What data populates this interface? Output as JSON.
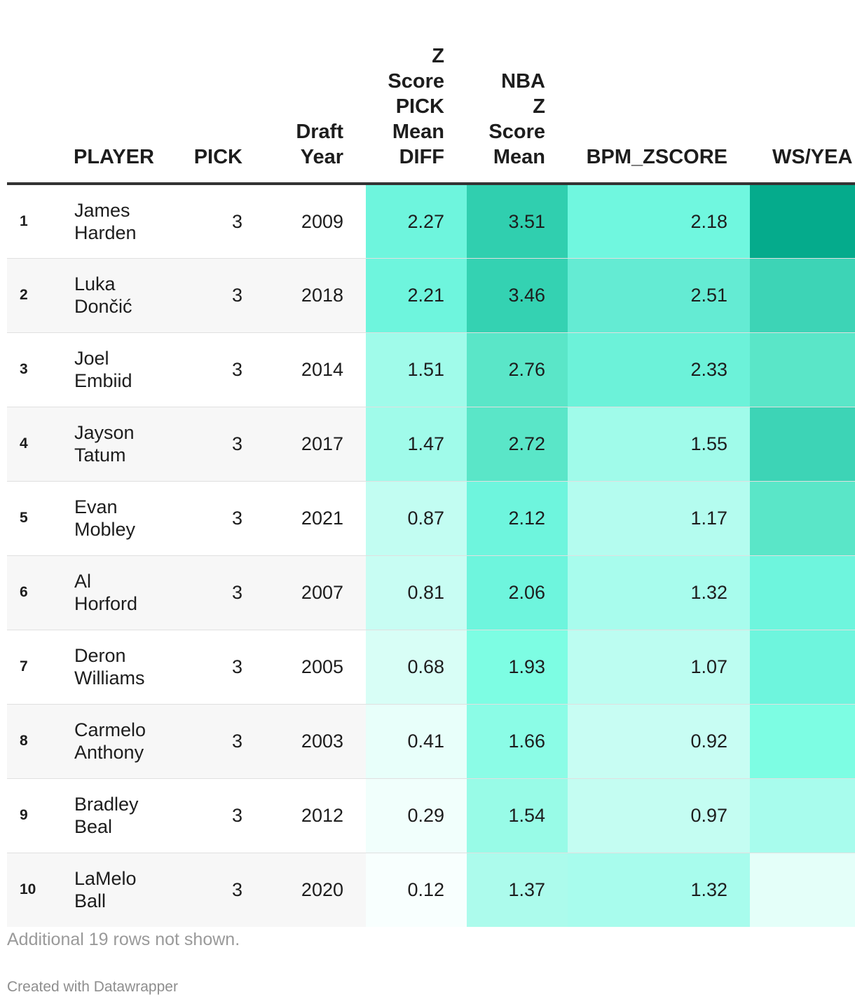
{
  "chart_data": {
    "type": "table",
    "columns": [
      "",
      "PLAYER",
      "PICK",
      "Draft\nYear",
      "Z\nScore\nPICK\nMean\nDIFF",
      "NBA\nZ\nScore\nMean",
      "BPM_ZSCORE",
      "WS/YEA"
    ],
    "rows": [
      {
        "rank": "1",
        "player": "James\nHarden",
        "pick": "3",
        "year": "2009",
        "zdiff": "2.27",
        "nba": "3.51",
        "bpm": "2.18",
        "ws": ""
      },
      {
        "rank": "2",
        "player": "Luka\nDončić",
        "pick": "3",
        "year": "2018",
        "zdiff": "2.21",
        "nba": "3.46",
        "bpm": "2.51",
        "ws": ""
      },
      {
        "rank": "3",
        "player": "Joel\nEmbiid",
        "pick": "3",
        "year": "2014",
        "zdiff": "1.51",
        "nba": "2.76",
        "bpm": "2.33",
        "ws": ""
      },
      {
        "rank": "4",
        "player": "Jayson\nTatum",
        "pick": "3",
        "year": "2017",
        "zdiff": "1.47",
        "nba": "2.72",
        "bpm": "1.55",
        "ws": ""
      },
      {
        "rank": "5",
        "player": "Evan\nMobley",
        "pick": "3",
        "year": "2021",
        "zdiff": "0.87",
        "nba": "2.12",
        "bpm": "1.17",
        "ws": ""
      },
      {
        "rank": "6",
        "player": "Al\nHorford",
        "pick": "3",
        "year": "2007",
        "zdiff": "0.81",
        "nba": "2.06",
        "bpm": "1.32",
        "ws": ""
      },
      {
        "rank": "7",
        "player": "Deron\nWilliams",
        "pick": "3",
        "year": "2005",
        "zdiff": "0.68",
        "nba": "1.93",
        "bpm": "1.07",
        "ws": ""
      },
      {
        "rank": "8",
        "player": "Carmelo\nAnthony",
        "pick": "3",
        "year": "2003",
        "zdiff": "0.41",
        "nba": "1.66",
        "bpm": "0.92",
        "ws": ""
      },
      {
        "rank": "9",
        "player": "Bradley\nBeal",
        "pick": "3",
        "year": "2012",
        "zdiff": "0.29",
        "nba": "1.54",
        "bpm": "0.97",
        "ws": ""
      },
      {
        "rank": "10",
        "player": "LaMelo\nBall",
        "pick": "3",
        "year": "2020",
        "zdiff": "0.12",
        "nba": "1.37",
        "bpm": "1.32",
        "ws": ""
      }
    ],
    "heat_colors": {
      "zdiff": [
        "#6ef5dd",
        "#6ef5dd",
        "#a0fbea",
        "#a0fbea",
        "#c2fdf2",
        "#c8fdf3",
        "#d8fef6",
        "#e8fffa",
        "#f1fffc",
        "#f8fffe"
      ],
      "nba": [
        "#30cfaf",
        "#34d2b2",
        "#5ae6c8",
        "#5ae6c8",
        "#6ef5dd",
        "#6ef5dd",
        "#7dfde3",
        "#8bfce6",
        "#98fbe7",
        "#acfbec"
      ],
      "bpm": [
        "#70f7df",
        "#64ebd3",
        "#6cf2d9",
        "#a0fbea",
        "#b4fcef",
        "#a8fced",
        "#bcfdf1",
        "#c8fdf3",
        "#c4fdf2",
        "#a8fced"
      ],
      "ws": [
        "#05ab8c",
        "#3dd4b6",
        "#5ae6c8",
        "#3dd4b6",
        "#5ae6c8",
        "#6ef5dd",
        "#6ef5dd",
        "#7dfde3",
        "#a8fced",
        "#e4fff9"
      ]
    },
    "footnote": "Additional 19 rows not shown."
  },
  "credit": "Created with Datawrapper"
}
